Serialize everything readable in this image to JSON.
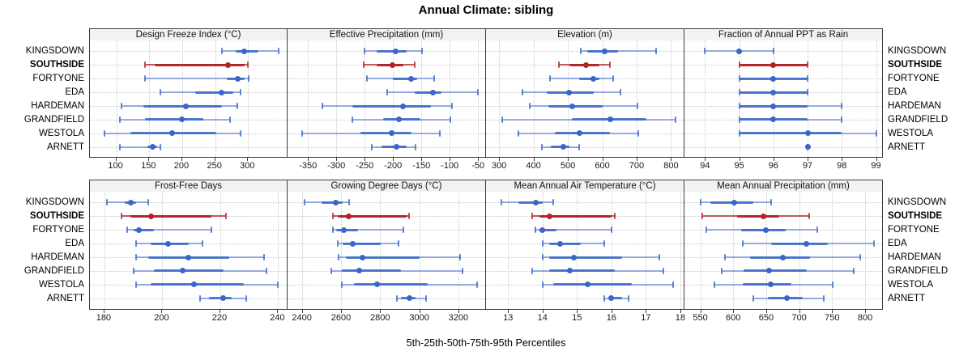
{
  "title": "Annual Climate: sibling",
  "caption": "5th-25th-50th-75th-95th Percentiles",
  "stations": [
    "KINGSDOWN",
    "SOUTHSIDE",
    "FORTYONE",
    "EDA",
    "HARDEMAN",
    "GRANDFIELD",
    "WESTOLA",
    "ARNETT"
  ],
  "highlight_station": "SOUTHSIDE",
  "percentiles": [
    "5th",
    "25th",
    "50th",
    "75th",
    "95th"
  ],
  "colors": {
    "normal": "#3A66C9",
    "highlight": "#B02428",
    "grid": "#C9C9C9",
    "strip_bg": "#F2F2F2",
    "border": "#3d3d3d",
    "text": "#000000"
  },
  "chart_data": [
    {
      "type": "scatter",
      "title": "Design Freeze Index (°C)",
      "xlim": [
        60,
        361
      ],
      "ticks": [
        100,
        150,
        200,
        250,
        300
      ],
      "values": [
        [
          260,
          281,
          294,
          316,
          346
        ],
        [
          143,
          158,
          269,
          295,
          300
        ],
        [
          144,
          268,
          284,
          295,
          301
        ],
        [
          167,
          220,
          260,
          277,
          289
        ],
        [
          108,
          141,
          205,
          260,
          284
        ],
        [
          105,
          144,
          200,
          232,
          272
        ],
        [
          82,
          121,
          185,
          252,
          289
        ],
        [
          105,
          147,
          155,
          162,
          167
        ]
      ]
    },
    {
      "type": "scatter",
      "title": "Effective Precipitation (mm)",
      "xlim": [
        -386,
        -36
      ],
      "ticks": [
        -350,
        -300,
        -250,
        -200,
        -150,
        -100,
        -50
      ],
      "values": [
        [
          -250,
          -229,
          -195,
          -176,
          -149
        ],
        [
          -252,
          -229,
          -201,
          -181,
          -162
        ],
        [
          -246,
          -200,
          -168,
          -157,
          -127
        ],
        [
          -210,
          -162,
          -130,
          -114,
          -50
        ],
        [
          -325,
          -272,
          -183,
          -133,
          -96
        ],
        [
          -272,
          -217,
          -190,
          -152,
          -99
        ],
        [
          -360,
          -257,
          -202,
          -167,
          -117
        ],
        [
          -238,
          -221,
          -194,
          -176,
          -160
        ]
      ]
    },
    {
      "type": "scatter",
      "title": "Elevation (m)",
      "xlim": [
        262,
        839
      ],
      "ticks": [
        300,
        400,
        500,
        600,
        700,
        800
      ],
      "values": [
        [
          537,
          556,
          606,
          647,
          756
        ],
        [
          474,
          505,
          552,
          592,
          623
        ],
        [
          447,
          533,
          574,
          592,
          632
        ],
        [
          368,
          439,
          503,
          576,
          654
        ],
        [
          390,
          444,
          513,
          600,
          702
        ],
        [
          309,
          511,
          623,
          729,
          814
        ],
        [
          357,
          462,
          533,
          623,
          705
        ],
        [
          425,
          451,
          486,
          505,
          533
        ]
      ]
    },
    {
      "type": "scatter",
      "title": "Fraction of Annual PPT as Rain",
      "xlim": [
        93.4,
        99.2
      ],
      "ticks": [
        94,
        95,
        96,
        97,
        98,
        99
      ],
      "values": [
        [
          94,
          95,
          95,
          95,
          96
        ],
        [
          95,
          95,
          96,
          97,
          97
        ],
        [
          95,
          95,
          96,
          97,
          97
        ],
        [
          95,
          95,
          96,
          97,
          97
        ],
        [
          95,
          95,
          96,
          97,
          98
        ],
        [
          95,
          95,
          96,
          97,
          98
        ],
        [
          95,
          95,
          97,
          98,
          99
        ],
        [
          97,
          97,
          97,
          97,
          97
        ]
      ]
    },
    {
      "type": "scatter",
      "title": "Frost-Free Days",
      "xlim": [
        175,
        243.5
      ],
      "ticks": [
        180,
        200,
        220,
        240
      ],
      "values": [
        [
          181,
          187,
          189,
          191,
          195
        ],
        [
          186,
          189,
          196,
          217,
          222
        ],
        [
          188,
          190,
          192,
          197,
          217
        ],
        [
          191,
          196,
          202,
          209,
          214
        ],
        [
          191,
          195,
          209,
          223,
          235
        ],
        [
          190,
          197,
          207,
          221,
          236
        ],
        [
          191,
          196,
          211,
          228,
          240
        ],
        [
          213,
          216,
          221,
          224,
          229
        ]
      ]
    },
    {
      "type": "scatter",
      "title": "Growing Degree Days (°C)",
      "xlim": [
        2327,
        3341
      ],
      "ticks": [
        2400,
        2600,
        2800,
        3000,
        3200
      ],
      "values": [
        [
          2412,
          2499,
          2575,
          2609,
          2641
        ],
        [
          2558,
          2582,
          2641,
          2934,
          2948
        ],
        [
          2558,
          2575,
          2614,
          2688,
          2920
        ],
        [
          2582,
          2609,
          2662,
          2803,
          2895
        ],
        [
          2589,
          2623,
          2710,
          3003,
          3207
        ],
        [
          2551,
          2603,
          2692,
          2906,
          3221
        ],
        [
          2603,
          2665,
          2785,
          3044,
          3296
        ],
        [
          2885,
          2906,
          2950,
          2982,
          3033
        ]
      ]
    },
    {
      "type": "scatter",
      "title": "Mean Annual Air Temperature (°C)",
      "xlim": [
        12.36,
        18.12
      ],
      "ticks": [
        13,
        14,
        15,
        16,
        17,
        18
      ],
      "values": [
        [
          12.8,
          13.3,
          13.8,
          14.0,
          14.3
        ],
        [
          13.7,
          13.9,
          14.2,
          16.0,
          16.1
        ],
        [
          13.8,
          13.9,
          14.0,
          14.4,
          16.0
        ],
        [
          14.0,
          14.2,
          14.5,
          15.1,
          15.8
        ],
        [
          14.0,
          14.2,
          14.9,
          16.3,
          17.4
        ],
        [
          13.7,
          14.2,
          14.8,
          16.1,
          17.5
        ],
        [
          14.0,
          14.3,
          15.3,
          16.6,
          17.8
        ],
        [
          15.8,
          15.9,
          16.0,
          16.3,
          16.5
        ]
      ]
    },
    {
      "type": "scatter",
      "title": "Mean Annual Precipitation (mm)",
      "xlim": [
        526,
        827
      ],
      "ticks": [
        550,
        600,
        650,
        700,
        750,
        800
      ],
      "values": [
        [
          550,
          565,
          601,
          631,
          657
        ],
        [
          553,
          606,
          646,
          670,
          715
        ],
        [
          559,
          612,
          650,
          679,
          727
        ],
        [
          614,
          657,
          711,
          743,
          813
        ],
        [
          587,
          625,
          675,
          716,
          792
        ],
        [
          583,
          616,
          654,
          711,
          783
        ],
        [
          571,
          614,
          657,
          688,
          751
        ],
        [
          631,
          653,
          681,
          706,
          737
        ]
      ]
    }
  ]
}
